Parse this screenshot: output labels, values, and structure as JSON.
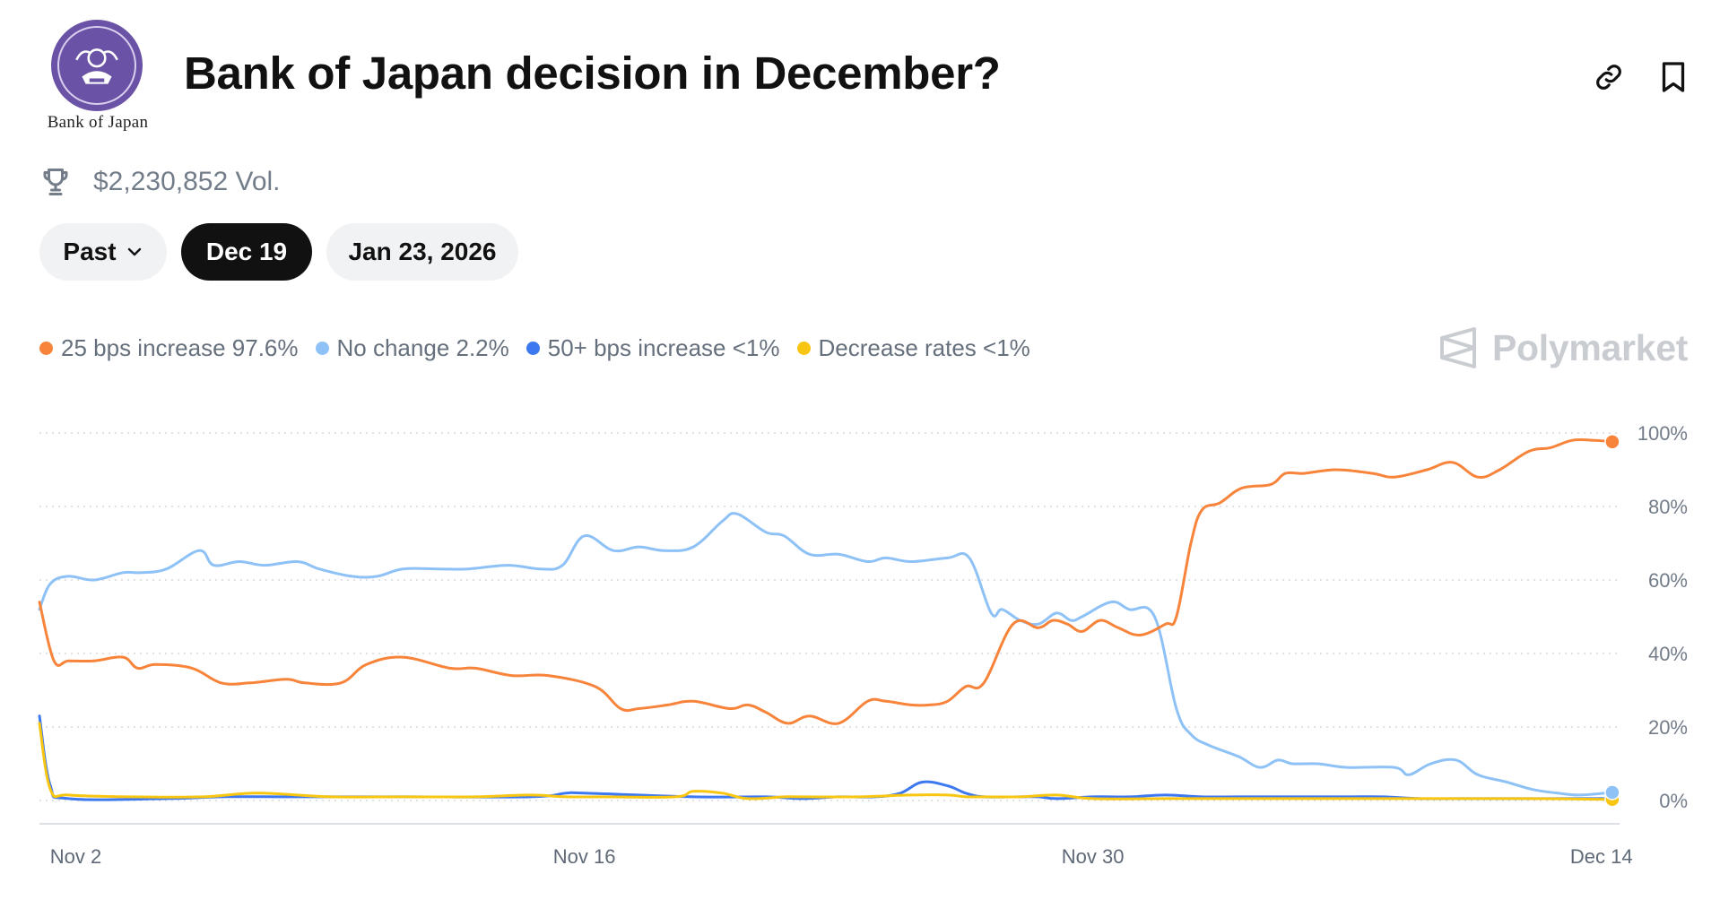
{
  "header": {
    "title": "Bank of Japan decision in December?",
    "logo_text": "Bank of Japan",
    "volume": "$2,230,852 Vol."
  },
  "tabs": {
    "past_label": "Past",
    "active_label": "Dec 19",
    "next_label": "Jan 23, 2026"
  },
  "legend": [
    {
      "label": "25 bps increase 97.6%",
      "color": "#f7843a"
    },
    {
      "label": "No change 2.2%",
      "color": "#8ec2f7"
    },
    {
      "label": "50+ bps increase <1%",
      "color": "#3c78f0"
    },
    {
      "label": "Decrease rates <1%",
      "color": "#f8c511"
    }
  ],
  "brand": {
    "name": "Polymarket"
  },
  "icons": {
    "link": "link-icon",
    "bookmark": "bookmark-icon",
    "trophy": "trophy-icon",
    "chevron": "chevron-down-icon"
  },
  "chart_data": {
    "type": "line",
    "title": "Bank of Japan decision in December?",
    "xlabel": "",
    "ylabel": "",
    "ylim": [
      0,
      100
    ],
    "xlim": [
      0,
      43.5
    ],
    "grid": true,
    "y_ticks": [
      0,
      20,
      40,
      60,
      80,
      100
    ],
    "y_tick_labels": [
      "0%",
      "20%",
      "40%",
      "60%",
      "80%",
      "100%"
    ],
    "x_ticks": [
      1,
      15,
      29,
      43
    ],
    "x_tick_labels": [
      "Nov 2",
      "Nov 16",
      "Nov 30",
      "Dec 14"
    ],
    "series": [
      {
        "name": "25 bps increase",
        "color": "#f7843a",
        "end_marker": true,
        "x": [
          0,
          0.4,
          0.8,
          1.5,
          2.3,
          2.7,
          3.2,
          4.2,
          5,
          5.8,
          6.8,
          7.3,
          8.3,
          9,
          10,
          11.3,
          12,
          13,
          14,
          15.3,
          16,
          16.5,
          17.3,
          18,
          19,
          19.5,
          20,
          20.6,
          21.2,
          22,
          22.8,
          23.3,
          24,
          24.5,
          25,
          25.5,
          26,
          26.8,
          27.5,
          27.9,
          28.3,
          28.7,
          29.2,
          29.7,
          30.3,
          31,
          31.3,
          31.7,
          32,
          32.5,
          33.1,
          33.9,
          34.3,
          34.8,
          35.7,
          36.7,
          37.3,
          38.2,
          38.9,
          39.6,
          40.2,
          41,
          41.6,
          42.2,
          42.8,
          43.3
        ],
        "values": [
          54,
          38,
          38,
          38,
          39,
          36,
          37,
          36,
          32,
          32,
          33,
          32,
          32,
          37,
          39,
          36,
          36,
          34,
          34,
          31,
          25,
          25,
          26,
          27,
          25,
          26,
          24,
          21,
          23,
          21,
          27,
          27,
          26,
          26,
          27,
          31,
          32,
          48,
          47,
          49,
          48,
          46,
          49,
          47,
          45,
          48,
          50,
          70,
          79,
          81,
          85,
          86,
          89,
          89,
          90,
          89,
          88,
          90,
          92,
          88,
          90,
          95,
          96,
          98,
          98,
          97.6
        ]
      },
      {
        "name": "No change",
        "color": "#8ec2f7",
        "end_marker": true,
        "x": [
          0,
          0.3,
          0.8,
          1.5,
          2.3,
          2.8,
          3.5,
          4.4,
          4.8,
          5.5,
          6.2,
          7.1,
          7.7,
          8.6,
          9.3,
          10,
          11,
          11.8,
          12.9,
          13.8,
          14.4,
          15,
          15.8,
          16.5,
          17.2,
          18,
          18.8,
          19.2,
          20,
          20.5,
          21.2,
          22,
          22.8,
          23.3,
          24,
          25,
          25.6,
          26.2,
          26.5,
          27,
          27.5,
          28,
          28.4,
          28.7,
          29.5,
          30,
          30.7,
          31.3,
          31.7,
          32.2,
          33,
          33.6,
          34.1,
          34.5,
          35.2,
          36,
          37.3,
          37.7,
          38.3,
          39,
          39.6,
          40.4,
          41.1,
          41.8,
          42.4,
          43.3
        ],
        "values": [
          52,
          59,
          61,
          60,
          62,
          62,
          63,
          68,
          64,
          65,
          64,
          65,
          63,
          61,
          61,
          63,
          63,
          63,
          64,
          63,
          64,
          72,
          68,
          69,
          68,
          69,
          76,
          78,
          73,
          72,
          67,
          67,
          65,
          66,
          65,
          66,
          66,
          51,
          52,
          49,
          48,
          51,
          49,
          50,
          54,
          52,
          50,
          25,
          18,
          15,
          12,
          9,
          11,
          10,
          10,
          9,
          9,
          7,
          10,
          11,
          7,
          5,
          3,
          2,
          1.5,
          2.2
        ]
      },
      {
        "name": "50+ bps increase",
        "color": "#3c78f0",
        "end_marker": false,
        "x": [
          0,
          0.3,
          0.8,
          3.5,
          5,
          7,
          10,
          13.5,
          14.5,
          15,
          18,
          20,
          21,
          22,
          23,
          23.7,
          24.3,
          25,
          25.5,
          26,
          27,
          27.5,
          28,
          29,
          30,
          31,
          32,
          33,
          34,
          35,
          36,
          37,
          38,
          39,
          40,
          41,
          42,
          43.3
        ],
        "values": [
          23,
          4,
          0.5,
          0.5,
          1,
          1,
          1,
          1,
          2,
          2,
          1,
          1,
          0.5,
          1,
          1,
          2,
          5,
          4,
          2,
          1,
          1,
          1,
          0.5,
          1,
          1,
          1.5,
          1,
          1,
          1,
          1,
          1,
          1,
          0.5,
          0.5,
          0.5,
          0.5,
          0.5,
          0.5
        ]
      },
      {
        "name": "Decrease rates",
        "color": "#f8c511",
        "end_marker": true,
        "x": [
          0,
          0.3,
          0.8,
          2.5,
          4.5,
          6,
          8,
          10,
          12,
          13.5,
          14.5,
          15.5,
          17.5,
          18,
          18.8,
          19.5,
          20.5,
          21,
          22.5,
          24,
          25,
          25.5,
          26,
          27,
          28,
          29,
          31,
          33,
          35,
          37,
          39,
          41,
          43.3
        ],
        "values": [
          21,
          3,
          1.5,
          1,
          1,
          2,
          1,
          1,
          1,
          1.5,
          1,
          1,
          1,
          2.5,
          2,
          0.5,
          1,
          1,
          1,
          1.5,
          1.5,
          1,
          1,
          1,
          1.5,
          0.5,
          0.5,
          0.5,
          0.5,
          0.5,
          0.5,
          0.5,
          0.3
        ]
      }
    ]
  }
}
